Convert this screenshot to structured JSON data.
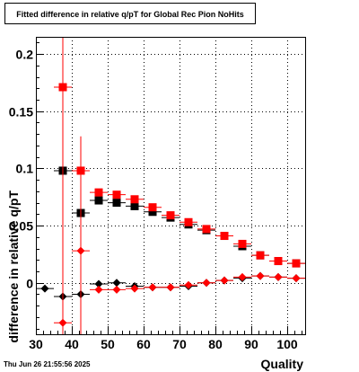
{
  "chart_data": {
    "type": "scatter",
    "title": "Fitted difference in relative q/pT for Global Rec Pion NoHits",
    "xlabel": "Quality",
    "ylabel": "difference in relative q/pT",
    "xlim": [
      30,
      105
    ],
    "ylim": [
      -0.045,
      0.215
    ],
    "x_ticks": [
      "30",
      "40",
      "50",
      "60",
      "70",
      "80",
      "90",
      "100"
    ],
    "y_ticks": [
      "0",
      "0.05",
      "0.1",
      "0.15",
      "0.2"
    ],
    "grid": true,
    "legend": "none",
    "series": [
      {
        "marker": "square",
        "color": "#000000",
        "points": [
          {
            "x": 37.5,
            "y": 0.098,
            "err": 0.0
          },
          {
            "x": 42.5,
            "y": 0.061,
            "err": 0.004
          },
          {
            "x": 47.5,
            "y": 0.072,
            "err": 0.003
          },
          {
            "x": 52.5,
            "y": 0.07,
            "err": 0.002
          },
          {
            "x": 57.5,
            "y": 0.067,
            "err": 0.002
          },
          {
            "x": 62.5,
            "y": 0.062,
            "err": 0.002
          },
          {
            "x": 67.5,
            "y": 0.057,
            "err": 0.002
          },
          {
            "x": 72.5,
            "y": 0.051,
            "err": 0.002
          },
          {
            "x": 77.5,
            "y": 0.046,
            "err": 0.002
          },
          {
            "x": 82.5,
            "y": 0.041,
            "err": 0.002
          },
          {
            "x": 87.5,
            "y": 0.032,
            "err": 0.002
          },
          {
            "x": 92.5,
            "y": 0.024,
            "err": 0.002
          },
          {
            "x": 97.5,
            "y": 0.019,
            "err": 0.002
          },
          {
            "x": 102.5,
            "y": 0.017,
            "err": 0.002
          }
        ]
      },
      {
        "marker": "square",
        "color": "#ff0000",
        "points": [
          {
            "x": 37.5,
            "y": 0.171,
            "err": 0.25
          },
          {
            "x": 42.5,
            "y": 0.098,
            "err": 0.003
          },
          {
            "x": 47.5,
            "y": 0.079,
            "err": 0.003
          },
          {
            "x": 52.5,
            "y": 0.077,
            "err": 0.002
          },
          {
            "x": 57.5,
            "y": 0.073,
            "err": 0.002
          },
          {
            "x": 62.5,
            "y": 0.066,
            "err": 0.002
          },
          {
            "x": 67.5,
            "y": 0.059,
            "err": 0.002
          },
          {
            "x": 72.5,
            "y": 0.053,
            "err": 0.002
          },
          {
            "x": 77.5,
            "y": 0.047,
            "err": 0.002
          },
          {
            "x": 82.5,
            "y": 0.041,
            "err": 0.002
          },
          {
            "x": 87.5,
            "y": 0.034,
            "err": 0.002
          },
          {
            "x": 92.5,
            "y": 0.024,
            "err": 0.002
          },
          {
            "x": 97.5,
            "y": 0.019,
            "err": 0.002
          },
          {
            "x": 102.5,
            "y": 0.017,
            "err": 0.002
          }
        ]
      },
      {
        "marker": "diamond",
        "color": "#000000",
        "points": [
          {
            "x": 32.5,
            "y": -0.005,
            "err": 0.002
          },
          {
            "x": 37.5,
            "y": -0.012,
            "err": 0.01
          },
          {
            "x": 42.5,
            "y": -0.01,
            "err": 0.006
          },
          {
            "x": 47.5,
            "y": -0.001,
            "err": 0.003
          },
          {
            "x": 52.5,
            "y": 0.0,
            "err": 0.002
          },
          {
            "x": 57.5,
            "y": -0.003,
            "err": 0.002
          },
          {
            "x": 62.5,
            "y": -0.004,
            "err": 0.002
          },
          {
            "x": 67.5,
            "y": -0.004,
            "err": 0.002
          },
          {
            "x": 72.5,
            "y": -0.003,
            "err": 0.002
          },
          {
            "x": 77.5,
            "y": 0.0,
            "err": 0.002
          },
          {
            "x": 82.5,
            "y": 0.002,
            "err": 0.002
          },
          {
            "x": 87.5,
            "y": 0.004,
            "err": 0.002
          },
          {
            "x": 92.5,
            "y": 0.006,
            "err": 0.002
          },
          {
            "x": 97.5,
            "y": 0.005,
            "err": 0.002
          },
          {
            "x": 102.5,
            "y": 0.004,
            "err": 0.002
          }
        ]
      },
      {
        "marker": "diamond",
        "color": "#ff0000",
        "points": [
          {
            "x": 37.5,
            "y": -0.035,
            "err": 0.25
          },
          {
            "x": 42.5,
            "y": 0.028,
            "err": 0.1
          },
          {
            "x": 47.5,
            "y": -0.006,
            "err": 0.002
          },
          {
            "x": 52.5,
            "y": -0.006,
            "err": 0.002
          },
          {
            "x": 57.5,
            "y": -0.005,
            "err": 0.002
          },
          {
            "x": 62.5,
            "y": -0.004,
            "err": 0.002
          },
          {
            "x": 67.5,
            "y": -0.004,
            "err": 0.002
          },
          {
            "x": 72.5,
            "y": -0.002,
            "err": 0.002
          },
          {
            "x": 77.5,
            "y": 0.0,
            "err": 0.002
          },
          {
            "x": 82.5,
            "y": 0.002,
            "err": 0.002
          },
          {
            "x": 87.5,
            "y": 0.005,
            "err": 0.002
          },
          {
            "x": 92.5,
            "y": 0.006,
            "err": 0.002
          },
          {
            "x": 97.5,
            "y": 0.005,
            "err": 0.002
          },
          {
            "x": 102.5,
            "y": 0.004,
            "err": 0.002
          }
        ]
      }
    ]
  },
  "stamp": "Thu Jun 26 21:55:56 2025"
}
